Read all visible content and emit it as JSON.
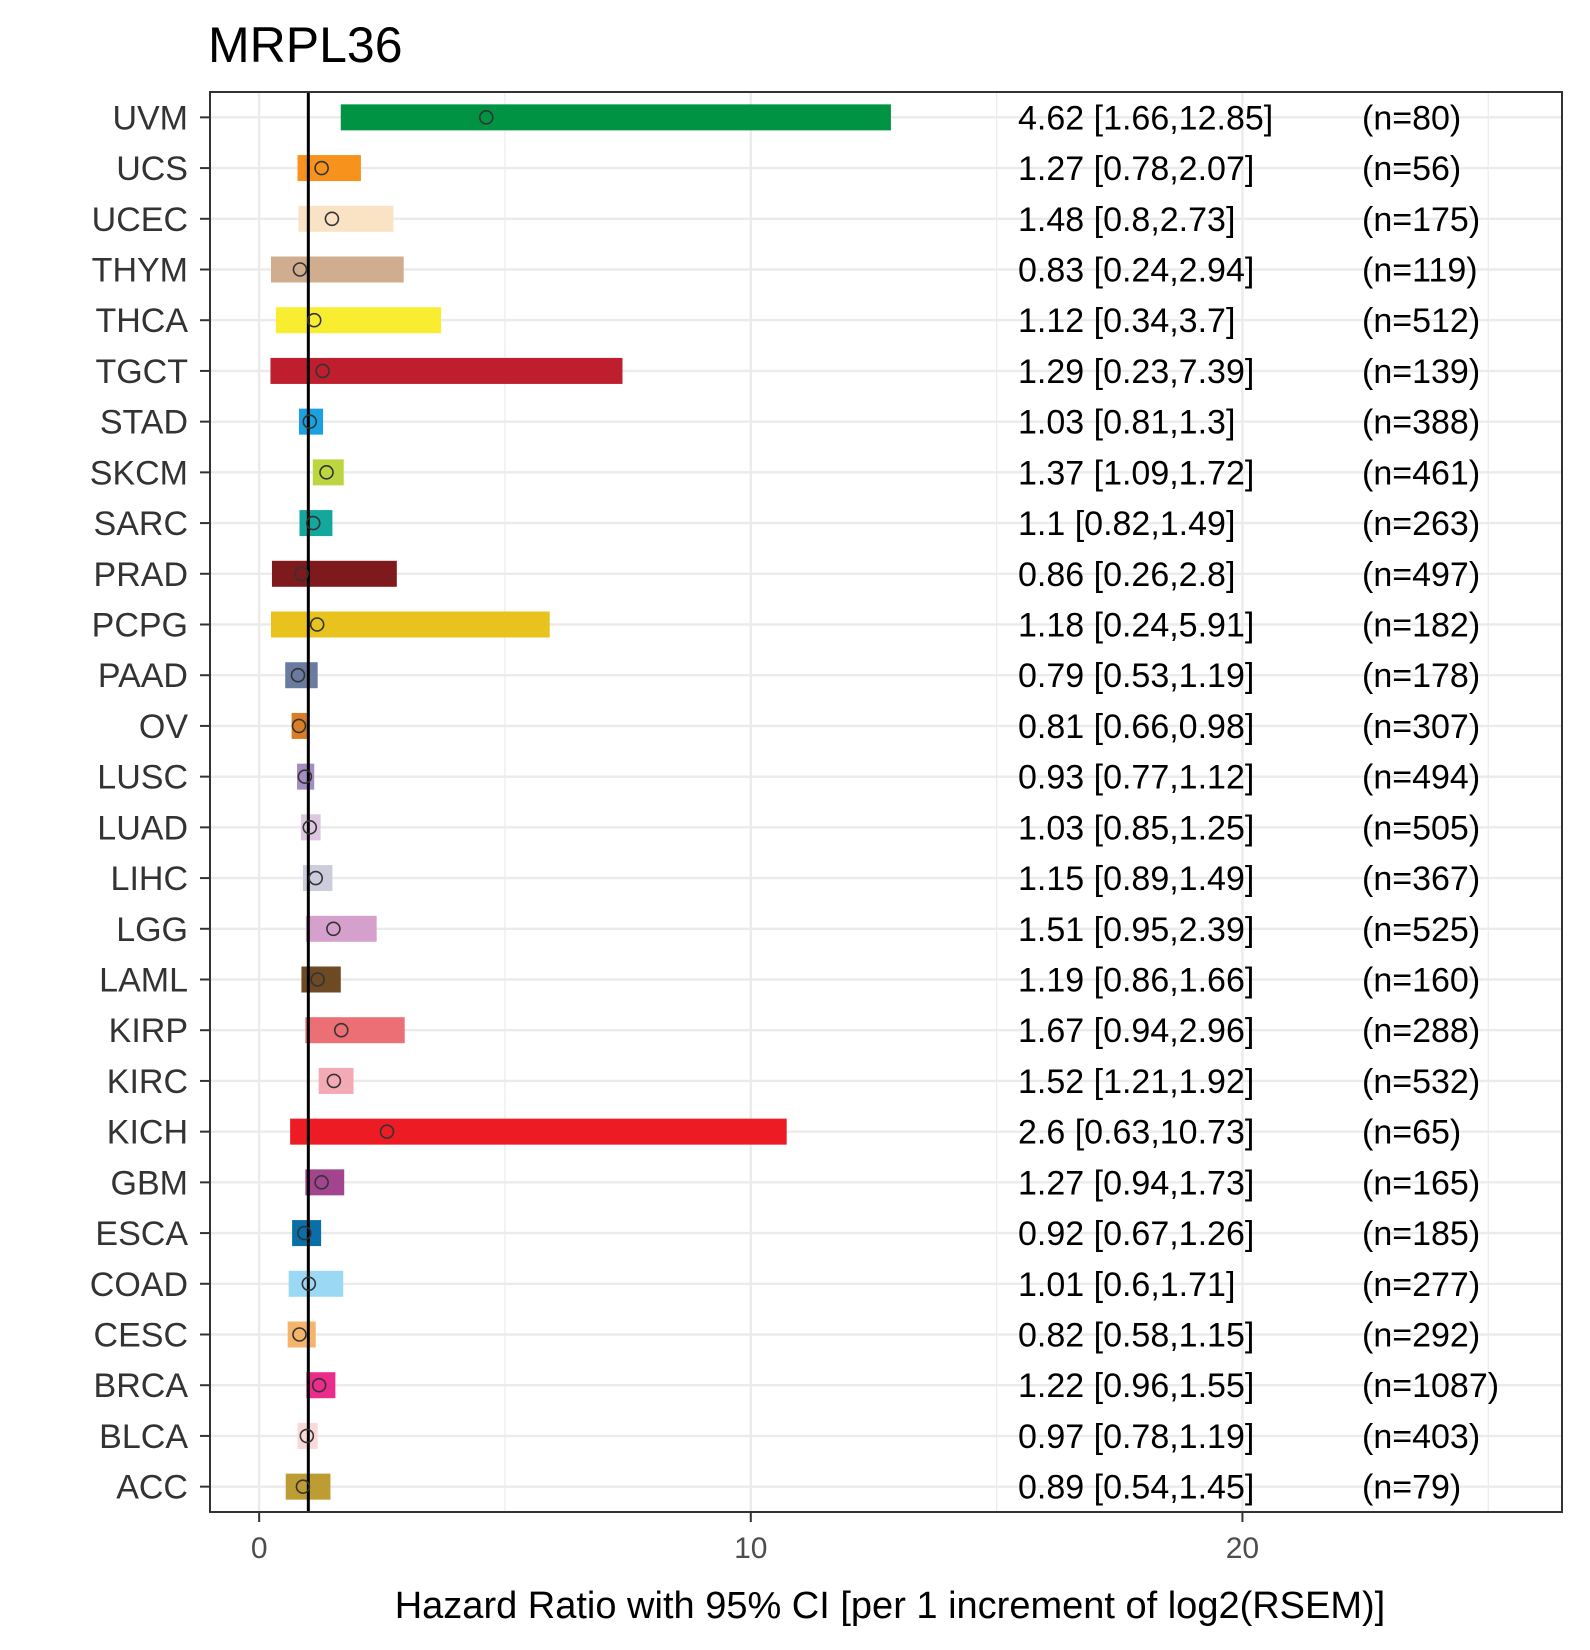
{
  "chart_data": {
    "type": "bar",
    "title": "MRPL36",
    "xlabel": "Hazard Ratio with 95% CI [per 1 increment of log2(RSEM)]",
    "ylabel": "",
    "xlim": [
      -1,
      26.5
    ],
    "x_ticks": [
      0,
      10,
      20
    ],
    "reference_line": 1,
    "grid": true,
    "rows": [
      {
        "label": "UVM",
        "hr": 4.62,
        "lower": 1.66,
        "upper": 12.85,
        "ci_text": "4.62 [1.66,12.85]",
        "n_text": "(n=80)",
        "color": "#009344"
      },
      {
        "label": "UCS",
        "hr": 1.27,
        "lower": 0.78,
        "upper": 2.07,
        "ci_text": "1.27 [0.78,2.07]",
        "n_text": "(n=56)",
        "color": "#F7931D"
      },
      {
        "label": "UCEC",
        "hr": 1.48,
        "lower": 0.8,
        "upper": 2.73,
        "ci_text": "1.48 [0.8,2.73]",
        "n_text": "(n=175)",
        "color": "#FAE2C4"
      },
      {
        "label": "THYM",
        "hr": 0.83,
        "lower": 0.24,
        "upper": 2.94,
        "ci_text": "0.83 [0.24,2.94]",
        "n_text": "(n=119)",
        "color": "#D1AD8F"
      },
      {
        "label": "THCA",
        "hr": 1.12,
        "lower": 0.34,
        "upper": 3.7,
        "ci_text": "1.12 [0.34,3.7]",
        "n_text": "(n=512)",
        "color": "#F9ED32"
      },
      {
        "label": "TGCT",
        "hr": 1.29,
        "lower": 0.23,
        "upper": 7.39,
        "ci_text": "1.29 [0.23,7.39]",
        "n_text": "(n=139)",
        "color": "#BE1E2D"
      },
      {
        "label": "STAD",
        "hr": 1.03,
        "lower": 0.81,
        "upper": 1.3,
        "ci_text": "1.03 [0.81,1.3]",
        "n_text": "(n=388)",
        "color": "#19A1E0"
      },
      {
        "label": "SKCM",
        "hr": 1.37,
        "lower": 1.09,
        "upper": 1.72,
        "ci_text": "1.37 [1.09,1.72]",
        "n_text": "(n=461)",
        "color": "#BCD642"
      },
      {
        "label": "SARC",
        "hr": 1.1,
        "lower": 0.82,
        "upper": 1.49,
        "ci_text": "1.1 [0.82,1.49]",
        "n_text": "(n=263)",
        "color": "#14A79B"
      },
      {
        "label": "PRAD",
        "hr": 0.86,
        "lower": 0.26,
        "upper": 2.8,
        "ci_text": "0.86 [0.26,2.8]",
        "n_text": "(n=497)",
        "color": "#7F1A1C"
      },
      {
        "label": "PCPG",
        "hr": 1.18,
        "lower": 0.24,
        "upper": 5.91,
        "ci_text": "1.18 [0.24,5.91]",
        "n_text": "(n=182)",
        "color": "#E8C31D"
      },
      {
        "label": "PAAD",
        "hr": 0.79,
        "lower": 0.53,
        "upper": 1.19,
        "ci_text": "0.79 [0.53,1.19]",
        "n_text": "(n=178)",
        "color": "#6B7A9F"
      },
      {
        "label": "OV",
        "hr": 0.81,
        "lower": 0.66,
        "upper": 0.98,
        "ci_text": "0.81 [0.66,0.98]",
        "n_text": "(n=307)",
        "color": "#D97E27"
      },
      {
        "label": "LUSC",
        "hr": 0.93,
        "lower": 0.77,
        "upper": 1.12,
        "ci_text": "0.93 [0.77,1.12]",
        "n_text": "(n=494)",
        "color": "#A58DC2"
      },
      {
        "label": "LUAD",
        "hr": 1.03,
        "lower": 0.85,
        "upper": 1.25,
        "ci_text": "1.03 [0.85,1.25]",
        "n_text": "(n=505)",
        "color": "#DCC6E0"
      },
      {
        "label": "LIHC",
        "hr": 1.15,
        "lower": 0.89,
        "upper": 1.49,
        "ci_text": "1.15 [0.89,1.49]",
        "n_text": "(n=367)",
        "color": "#CCCCDC"
      },
      {
        "label": "LGG",
        "hr": 1.51,
        "lower": 0.95,
        "upper": 2.39,
        "ci_text": "1.51 [0.95,2.39]",
        "n_text": "(n=525)",
        "color": "#D5A0CC"
      },
      {
        "label": "LAML",
        "hr": 1.19,
        "lower": 0.86,
        "upper": 1.66,
        "ci_text": "1.19 [0.86,1.66]",
        "n_text": "(n=160)",
        "color": "#6D4A24"
      },
      {
        "label": "KIRP",
        "hr": 1.67,
        "lower": 0.94,
        "upper": 2.96,
        "ci_text": "1.67 [0.94,2.96]",
        "n_text": "(n=288)",
        "color": "#EB6F74"
      },
      {
        "label": "KIRC",
        "hr": 1.52,
        "lower": 1.21,
        "upper": 1.92,
        "ci_text": "1.52 [1.21,1.92]",
        "n_text": "(n=532)",
        "color": "#F4AAB5"
      },
      {
        "label": "KICH",
        "hr": 2.6,
        "lower": 0.63,
        "upper": 10.73,
        "ci_text": "2.6 [0.63,10.73]",
        "n_text": "(n=65)",
        "color": "#ED1C24"
      },
      {
        "label": "GBM",
        "hr": 1.27,
        "lower": 0.94,
        "upper": 1.73,
        "ci_text": "1.27 [0.94,1.73]",
        "n_text": "(n=165)",
        "color": "#A2458E"
      },
      {
        "label": "ESCA",
        "hr": 0.92,
        "lower": 0.67,
        "upper": 1.26,
        "ci_text": "0.92 [0.67,1.26]",
        "n_text": "(n=185)",
        "color": "#0A6FA8"
      },
      {
        "label": "COAD",
        "hr": 1.01,
        "lower": 0.6,
        "upper": 1.71,
        "ci_text": "1.01 [0.6,1.71]",
        "n_text": "(n=277)",
        "color": "#9BD8F4"
      },
      {
        "label": "CESC",
        "hr": 0.82,
        "lower": 0.58,
        "upper": 1.15,
        "ci_text": "0.82 [0.58,1.15]",
        "n_text": "(n=292)",
        "color": "#F5B46C"
      },
      {
        "label": "BRCA",
        "hr": 1.22,
        "lower": 0.96,
        "upper": 1.55,
        "ci_text": "1.22 [0.96,1.55]",
        "n_text": "(n=1087)",
        "color": "#EC2C8C"
      },
      {
        "label": "BLCA",
        "hr": 0.97,
        "lower": 0.78,
        "upper": 1.19,
        "ci_text": "0.97 [0.78,1.19]",
        "n_text": "(n=403)",
        "color": "#F8DADB"
      },
      {
        "label": "ACC",
        "hr": 0.89,
        "lower": 0.54,
        "upper": 1.45,
        "ci_text": "0.89 [0.54,1.45]",
        "n_text": "(n=79)",
        "color": "#BE9C34"
      }
    ]
  }
}
